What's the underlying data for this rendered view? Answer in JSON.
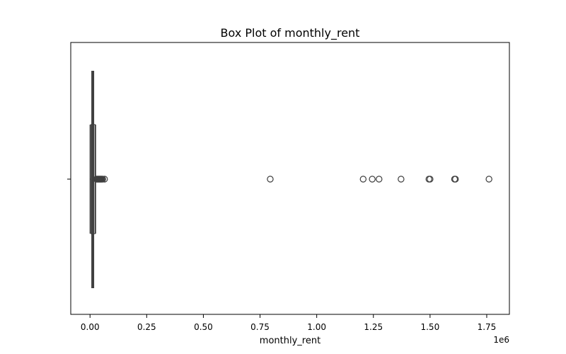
{
  "chart_data": {
    "type": "box",
    "orientation": "horizontal",
    "title": "Box Plot of monthly_rent",
    "xlabel": "monthly_rent",
    "x_offset_text": "1e6",
    "xlim": [
      -0.085,
      1.85
    ],
    "xticks": [
      0.0,
      0.25,
      0.5,
      0.75,
      1.0,
      1.25,
      1.5,
      1.75
    ],
    "xtick_labels": [
      "0.00",
      "0.25",
      "0.50",
      "0.75",
      "1.00",
      "1.25",
      "1.50",
      "1.75"
    ],
    "scale_multiplier": 1000000,
    "grid": false,
    "legend": "none",
    "box": {
      "whislo": 0.0,
      "q1": 0.004,
      "median": 0.012,
      "q3": 0.022,
      "whishi": 0.025
    },
    "fliers": [
      0.028,
      0.031,
      0.034,
      0.037,
      0.04,
      0.043,
      0.046,
      0.049,
      0.052,
      0.056,
      0.064,
      0.795,
      1.205,
      1.245,
      1.275,
      1.372,
      1.495,
      1.5,
      1.608,
      1.612,
      1.76
    ],
    "colors": {
      "box_edge": "#3f3f3f",
      "median": "#3f3f3f",
      "flier_edge": "#3f3f3f"
    }
  }
}
